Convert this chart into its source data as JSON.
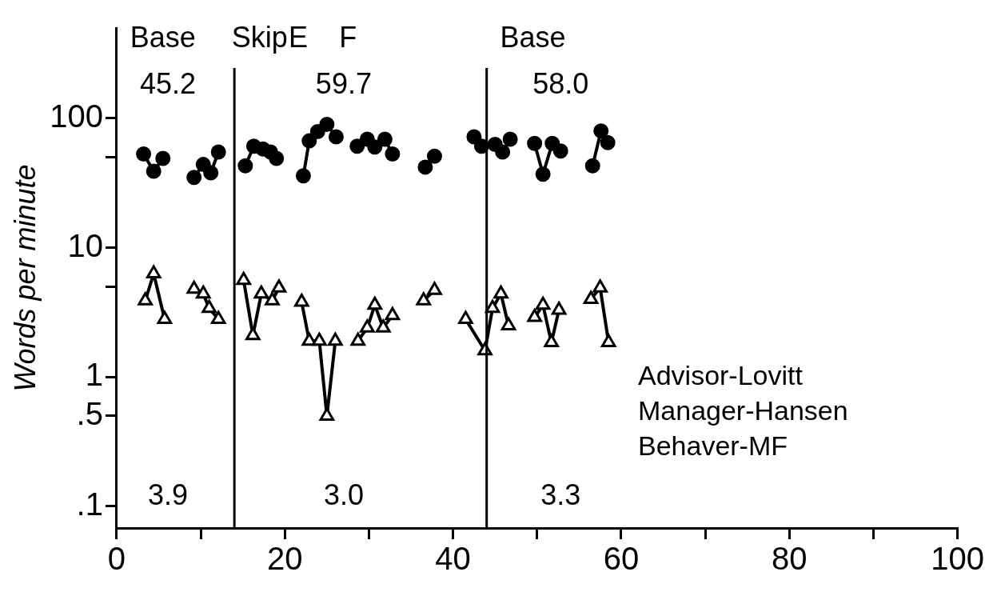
{
  "chart_data": {
    "type": "line",
    "ylabel": "Words per minute",
    "log": "y",
    "grid": false,
    "legend": false,
    "xlim": [
      0,
      100
    ],
    "xticks": [
      0,
      {
        "value": 10,
        "label": null
      },
      20,
      {
        "value": 30,
        "label": null
      },
      40,
      {
        "value": 50,
        "label": null
      },
      60,
      {
        "value": 70,
        "label": null
      },
      80,
      {
        "value": 90,
        "label": null
      },
      100
    ],
    "ylim": [
      0.068,
      500
    ],
    "yticks": [
      {
        "value": 0.1,
        "label": ".1"
      },
      {
        "value": 0.5,
        "label": ".5"
      },
      1,
      {
        "value": 5,
        "label": null
      },
      10,
      {
        "value": 50,
        "label": null
      },
      100
    ],
    "series": [
      {
        "color": "#000000",
        "marker": "circle",
        "x": [
          3.2,
          4.4,
          5.5,
          7,
          9.2,
          10.3,
          11.2,
          12.1,
          14,
          15.3,
          16.3,
          17.4,
          18.3,
          19.0,
          20.5,
          22.2,
          22.9,
          23.9,
          25.0,
          26.1,
          27.5,
          28.6,
          29.8,
          30.7,
          31.9,
          32.8,
          35,
          36.7,
          37.8,
          40,
          42.5,
          43.4,
          45.0,
          45.9,
          46.8,
          48,
          49.7,
          50.7,
          51.8,
          52.8,
          54,
          56.6,
          57.6,
          58.4
        ],
        "values": [
          53,
          39,
          49,
          null,
          35,
          44,
          38,
          55,
          null,
          43,
          61,
          58,
          55,
          49,
          null,
          36,
          67,
          79,
          90,
          72,
          null,
          61,
          69,
          60,
          69,
          53,
          null,
          42,
          51,
          null,
          72,
          61,
          63,
          55,
          69,
          null,
          64,
          37,
          64,
          56,
          null,
          43,
          80,
          65
        ]
      },
      {
        "color": "#000000",
        "marker": "triangle",
        "x": [
          3.4,
          4.4,
          5.7,
          7,
          9.2,
          10.3,
          11.0,
          12.1,
          14,
          15.1,
          16.2,
          17.2,
          18.5,
          19.3,
          20.5,
          22.0,
          22.9,
          24.1,
          25.0,
          26.0,
          27.5,
          28.7,
          29.8,
          30.7,
          31.7,
          32.8,
          35,
          36.5,
          37.8,
          40,
          41.5,
          43.8,
          44.7,
          45.7,
          46.6,
          48,
          49.7,
          50.7,
          51.7,
          52.6,
          54,
          56.4,
          57.5,
          58.5
        ],
        "values": [
          3.9,
          6.3,
          2.8,
          null,
          4.8,
          4.4,
          3.4,
          2.8,
          null,
          5.6,
          2.1,
          4.4,
          3.9,
          4.9,
          null,
          3.8,
          1.9,
          1.9,
          0.5,
          1.9,
          null,
          1.9,
          2.4,
          3.6,
          2.4,
          3.0,
          null,
          3.9,
          4.7,
          null,
          2.8,
          1.6,
          3.4,
          4.4,
          2.5,
          null,
          2.9,
          3.6,
          1.85,
          3.3,
          null,
          4.0,
          4.9,
          1.85
        ]
      }
    ],
    "ref_lines": [
      {
        "axis": "x",
        "value": 14,
        "color": "#000000"
      },
      {
        "axis": "x",
        "value": 44,
        "color": "#000000"
      }
    ],
    "annotations": [
      "Base",
      "Skip",
      "E",
      "F",
      "Base",
      "45.2",
      "59.7",
      "58.0",
      "3.9",
      "3.0",
      "3.3",
      "Advisor-Lovitt",
      "Manager-Hansen",
      "Behaver-MF"
    ]
  }
}
